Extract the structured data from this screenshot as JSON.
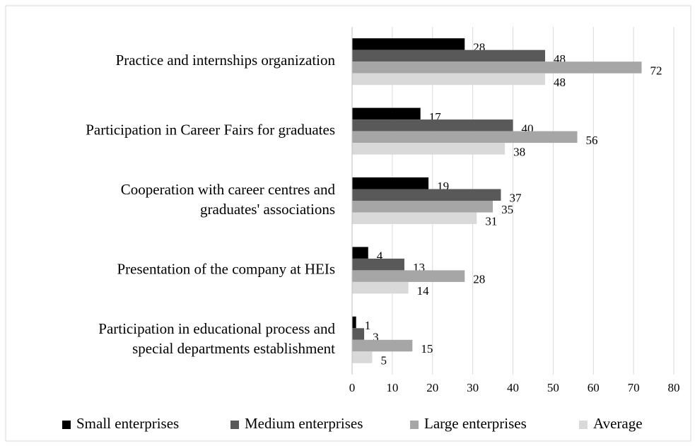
{
  "chart_data": {
    "type": "bar",
    "orientation": "horizontal",
    "categories": [
      "Practice and internships organization",
      "Participation in Career Fairs for graduates",
      "Cooperation with career centres and\ngraduates' associations",
      "Presentation of the company at HEIs",
      "Participation in educational process and\nspecial departments establishment"
    ],
    "series": [
      {
        "name": "Small enterprises",
        "color": "#000000",
        "values": [
          28,
          17,
          19,
          4,
          1
        ]
      },
      {
        "name": "Medium enterprises",
        "color": "#595959",
        "values": [
          48,
          40,
          37,
          13,
          3
        ]
      },
      {
        "name": "Large enterprises",
        "color": "#a6a6a6",
        "values": [
          72,
          56,
          35,
          28,
          15
        ]
      },
      {
        "name": "Average",
        "color": "#d9d9d9",
        "values": [
          48,
          38,
          31,
          14,
          5
        ]
      }
    ],
    "xlim": [
      0,
      80
    ],
    "xticks": [
      0,
      10,
      20,
      30,
      40,
      50,
      60,
      70,
      80
    ],
    "grid": true,
    "legend": "bottom"
  }
}
